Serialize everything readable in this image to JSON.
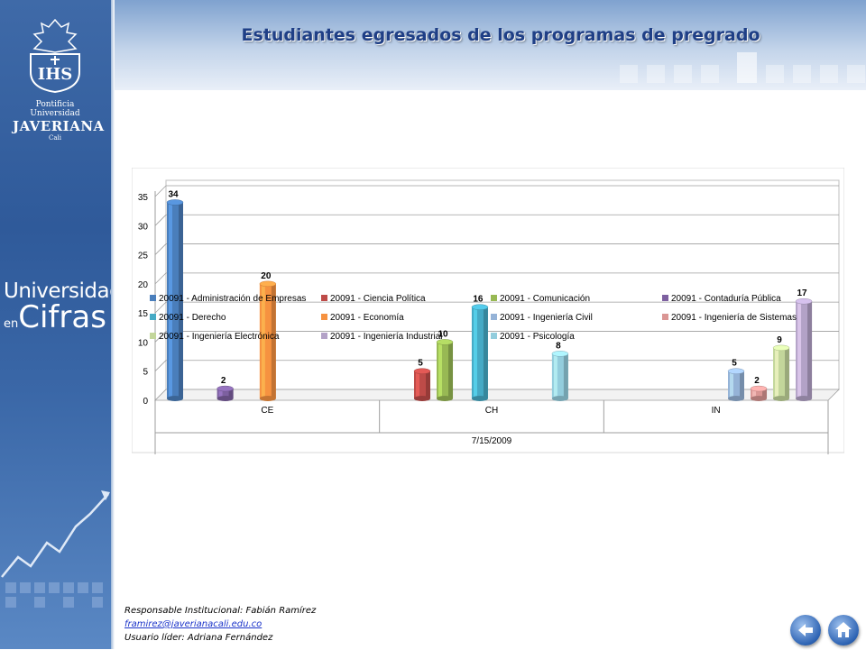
{
  "page": {
    "title": "Estudiantes egresados de los programas de pregrado",
    "logo": {
      "line1": "Pontificia Universidad",
      "line2": "JAVERIANA",
      "line3": "Cali",
      "emblem_text": "IHS"
    },
    "sidebar_brand": {
      "word1": "Universidad",
      "word2": "en",
      "word3": "Cifras"
    },
    "footer": {
      "responsible": "Responsable Institucional: Fabián Ramírez",
      "email": "framirez@javerianacali.edu.co",
      "leader": "Usuario líder: Adriana Fernández"
    },
    "nav": {
      "back_icon": "back-arrow-icon",
      "home_icon": "home-icon"
    },
    "colors": {
      "sidebar": "#2f5a9a",
      "title": "#1f3f86"
    }
  },
  "chart_data": {
    "type": "bar",
    "title": "",
    "xlabel": "7/15/2009",
    "ylabel": "",
    "ylim": [
      0,
      35
    ],
    "yticks": [
      0,
      5,
      10,
      15,
      20,
      25,
      30,
      35
    ],
    "grid": true,
    "legend_position": "bottom",
    "categories": [
      "CE",
      "CH",
      "IN"
    ],
    "series": [
      {
        "name": "20091 - Administración de Empresas",
        "color": "#4a7ebb",
        "values": [
          34,
          null,
          null
        ]
      },
      {
        "name": "20091 - Ciencia Política",
        "color": "#be4b48",
        "values": [
          null,
          5,
          null
        ]
      },
      {
        "name": "20091 - Comunicación",
        "color": "#98b954",
        "values": [
          null,
          10,
          null
        ]
      },
      {
        "name": "20091 - Contaduría Pública",
        "color": "#7d60a0",
        "values": [
          2,
          null,
          null
        ]
      },
      {
        "name": "20091 - Derecho",
        "color": "#46aac5",
        "values": [
          null,
          16,
          null
        ]
      },
      {
        "name": "20091 - Economía",
        "color": "#f69240",
        "values": [
          20,
          null,
          null
        ]
      },
      {
        "name": "20091 - Ingeniería Civil",
        "color": "#95b3d7",
        "values": [
          null,
          null,
          5
        ]
      },
      {
        "name": "20091 - Ingeniería de Sistemas",
        "color": "#da9694",
        "values": [
          null,
          null,
          2
        ]
      },
      {
        "name": "20091 - Ingeniería Electrónica",
        "color": "#c3d69b",
        "values": [
          null,
          null,
          9
        ]
      },
      {
        "name": "20091 - Ingeniería Industrial",
        "color": "#b3a2c7",
        "values": [
          null,
          null,
          17
        ]
      },
      {
        "name": "20091 - Psicología",
        "color": "#93cddd",
        "values": [
          null,
          8,
          null
        ]
      }
    ]
  }
}
